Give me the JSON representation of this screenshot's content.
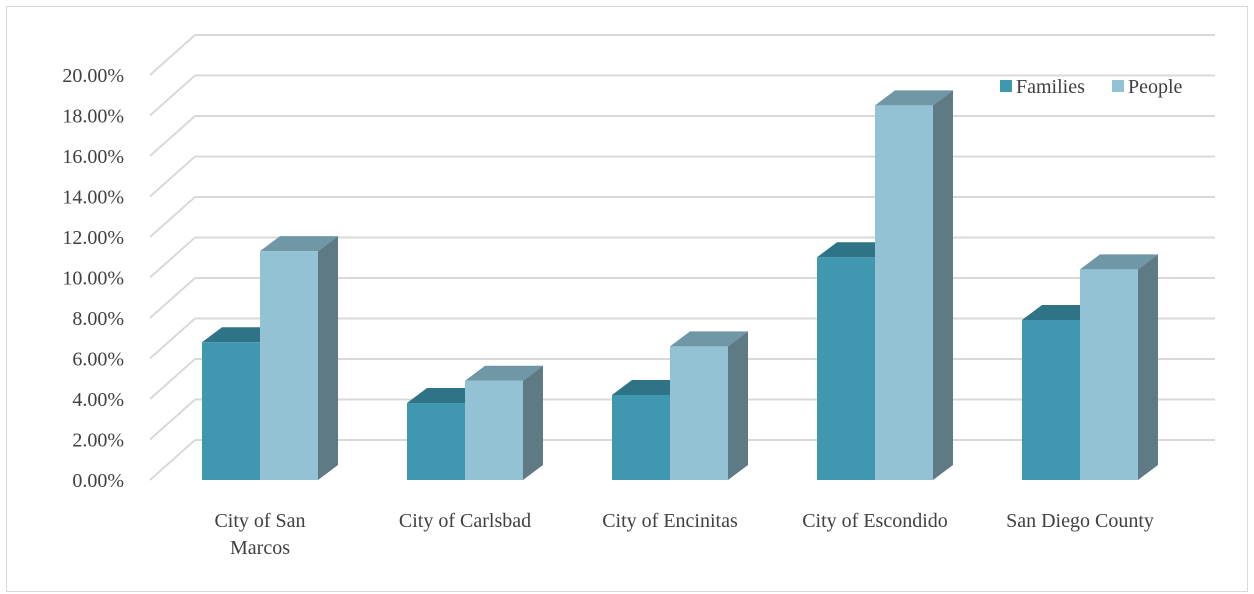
{
  "chart_data": {
    "type": "bar",
    "title": "",
    "xlabel": "",
    "ylabel": "",
    "categories": [
      [
        "City of San",
        "Marcos"
      ],
      [
        "City of Carlsbad"
      ],
      [
        "City of Encinitas"
      ],
      [
        "City of Escondido"
      ],
      [
        "San Diego County"
      ]
    ],
    "series": [
      {
        "name": "Families",
        "values": [
          6.8,
          3.8,
          4.2,
          11.0,
          7.9
        ]
      },
      {
        "name": "People",
        "values": [
          11.3,
          4.9,
          6.6,
          18.5,
          10.4
        ]
      }
    ],
    "ylim": [
      0,
      20
    ],
    "yticks": [
      "0.00%",
      "2.00%",
      "4.00%",
      "6.00%",
      "8.00%",
      "10.00%",
      "12.00%",
      "14.00%",
      "16.00%",
      "18.00%",
      "20.00%"
    ],
    "grid": true,
    "legend_position": "top-right",
    "style_3d": true,
    "colors": {
      "Families": {
        "front": "#4097b0",
        "top": "#2f7387",
        "side": "#2d6f82"
      },
      "People": {
        "front": "#93c2d4",
        "top": "#6f97a6",
        "side": "#5e7a85"
      },
      "gridline": "#d9d9d9"
    }
  }
}
